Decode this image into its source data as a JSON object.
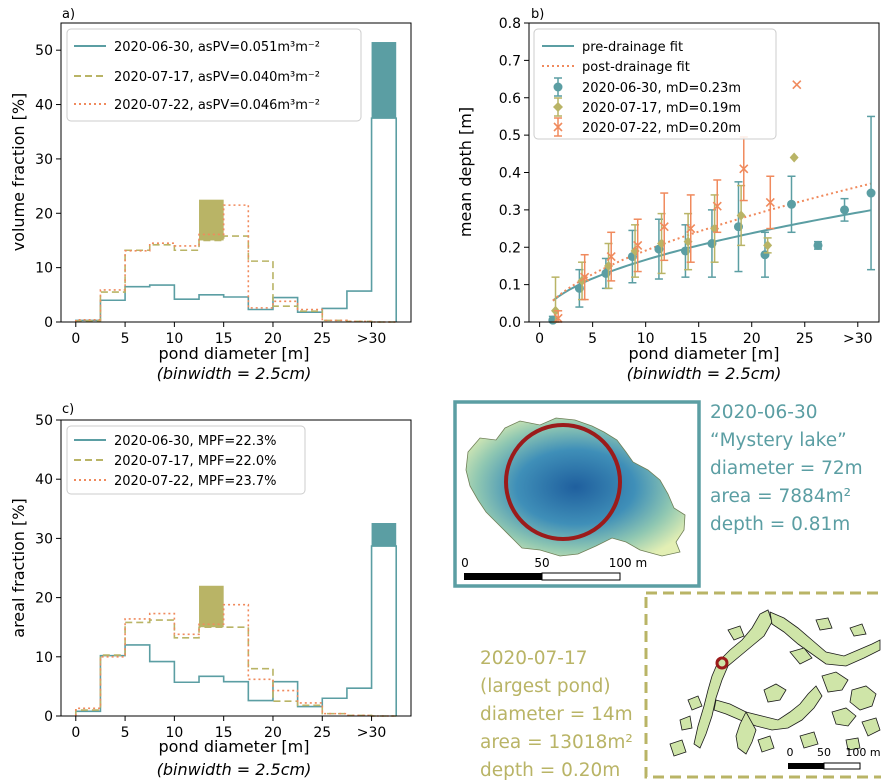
{
  "colors": {
    "teal": "#5b9ea3",
    "olive": "#b9b466",
    "salmon": "#f08a5d",
    "dark_red": "#9b1b1b",
    "pond_fill": "#cfe5a8"
  },
  "chart_data": [
    {
      "id": "a",
      "panel_label": "a)",
      "type": "histogram",
      "ylabel": "volume fraction [%]",
      "xlabel": "pond diameter [m]",
      "xlabel_sub": "(binwidth = 2.5cm)",
      "ylim": [
        0,
        55
      ],
      "yticks": [
        0,
        10,
        20,
        30,
        40,
        50
      ],
      "xtick_labels": [
        "0",
        "5",
        "10",
        "15",
        "20",
        "25",
        ">30"
      ],
      "xticks": [
        0,
        5,
        10,
        15,
        20,
        25,
        30
      ],
      "bin_edges": [
        0,
        2.5,
        5,
        7.5,
        10,
        12.5,
        15,
        17.5,
        20,
        22.5,
        25,
        27.5,
        30,
        32.5
      ],
      "legend": [
        {
          "label": "2020-06-30, asPV=0.051m³m⁻²",
          "style": "solid"
        },
        {
          "label": "2020-07-17, asPV=0.040m³m⁻²",
          "style": "dashed"
        },
        {
          "label": "2020-07-22, asPV=0.046m³m⁻²",
          "style": "dotted"
        }
      ],
      "series": [
        {
          "name": "2020-06-30",
          "values": [
            0.3,
            4.0,
            6.5,
            6.8,
            4.2,
            5.0,
            4.6,
            2.3,
            4.5,
            1.8,
            2.5,
            5.7,
            37.5
          ]
        },
        {
          "name": "2020-07-17",
          "values": [
            0.2,
            5.5,
            13.2,
            14.2,
            13.2,
            15.0,
            15.8,
            11.2,
            2.9,
            2.0,
            0.3,
            0.1,
            0.0
          ]
        },
        {
          "name": "2020-07-22",
          "values": [
            0.4,
            5.9,
            13.1,
            14.5,
            14.0,
            16.1,
            21.5,
            2.6,
            3.8,
            2.3,
            0.3,
            0.1,
            0.0
          ]
        }
      ],
      "highlights": [
        {
          "x0": 12.5,
          "x1": 15,
          "y0": 15.0,
          "y1": 22.5,
          "color": "olive"
        },
        {
          "x0": 30,
          "x1": 32.5,
          "y0": 37.5,
          "y1": 51.5,
          "color": "teal"
        }
      ]
    },
    {
      "id": "b",
      "panel_label": "b)",
      "type": "scatter",
      "ylabel": "mean depth [m]",
      "xlabel": "pond diameter [m]",
      "xlabel_sub": "(binwidth = 2.5cm)",
      "xlim": [
        -1,
        32
      ],
      "ylim": [
        0,
        0.8
      ],
      "yticks": [
        0.0,
        0.1,
        0.2,
        0.3,
        0.4,
        0.5,
        0.6,
        0.7,
        0.8
      ],
      "xtick_labels": [
        "0",
        "5",
        "10",
        "15",
        "20",
        "25",
        ">30"
      ],
      "xticks": [
        0,
        5,
        10,
        15,
        20,
        25,
        30
      ],
      "legend": [
        {
          "label": "pre-drainage fit",
          "style": "line-solid"
        },
        {
          "label": "post-drainage fit",
          "style": "line-dotted"
        },
        {
          "label": "2020-06-30, mD=0.23m",
          "style": "marker-circle"
        },
        {
          "label": "2020-07-17, mD=0.19m",
          "style": "marker-diamond"
        },
        {
          "label": "2020-07-22, mD=0.20m",
          "style": "marker-x"
        }
      ],
      "fits": [
        {
          "name": "pre-drainage fit",
          "a": 0.0508,
          "b": 0.515,
          "x_start": 1.25,
          "x_end": 31.25
        },
        {
          "name": "post-drainage fit",
          "a": 0.0503,
          "b": 0.58,
          "x_start": 1.25,
          "x_end": 31.25
        }
      ],
      "series": [
        {
          "name": "2020-06-30",
          "marker": "circle",
          "points": [
            {
              "x": 1.25,
              "y": 0.005,
              "err": 0.01
            },
            {
              "x": 3.75,
              "y": 0.09,
              "err": 0.05
            },
            {
              "x": 6.25,
              "y": 0.13,
              "err": 0.04
            },
            {
              "x": 8.75,
              "y": 0.175,
              "err": 0.07
            },
            {
              "x": 11.25,
              "y": 0.195,
              "err": 0.08
            },
            {
              "x": 13.75,
              "y": 0.19,
              "err": 0.07
            },
            {
              "x": 16.25,
              "y": 0.21,
              "err": 0.09
            },
            {
              "x": 18.75,
              "y": 0.255,
              "err": 0.12
            },
            {
              "x": 21.25,
              "y": 0.18,
              "err": 0.06
            },
            {
              "x": 23.75,
              "y": 0.315,
              "err": 0.075
            },
            {
              "x": 26.25,
              "y": 0.205,
              "err": 0.01
            },
            {
              "x": 28.75,
              "y": 0.3,
              "err": 0.03
            },
            {
              "x": 31.25,
              "y": 0.345,
              "err": 0.205
            }
          ]
        },
        {
          "name": "2020-07-17",
          "marker": "diamond",
          "points": [
            {
              "x": 1.5,
              "y": 0.03,
              "err": 0.09
            },
            {
              "x": 4.0,
              "y": 0.11,
              "err": 0.05
            },
            {
              "x": 6.5,
              "y": 0.15,
              "err": 0.06
            },
            {
              "x": 9.0,
              "y": 0.19,
              "err": 0.07
            },
            {
              "x": 11.5,
              "y": 0.21,
              "err": 0.08
            },
            {
              "x": 14.0,
              "y": 0.215,
              "err": 0.075
            },
            {
              "x": 16.5,
              "y": 0.25,
              "err": 0.09
            },
            {
              "x": 19.0,
              "y": 0.285,
              "err": 0.08
            },
            {
              "x": 21.5,
              "y": 0.205,
              "err": 0.02
            },
            {
              "x": 24.0,
              "y": 0.44,
              "err": 0.0
            }
          ]
        },
        {
          "name": "2020-07-22",
          "marker": "x",
          "points": [
            {
              "x": 1.75,
              "y": 0.01,
              "err": 0.02
            },
            {
              "x": 4.25,
              "y": 0.12,
              "err": 0.06
            },
            {
              "x": 6.75,
              "y": 0.175,
              "err": 0.065
            },
            {
              "x": 9.25,
              "y": 0.205,
              "err": 0.07
            },
            {
              "x": 11.75,
              "y": 0.255,
              "err": 0.09
            },
            {
              "x": 14.25,
              "y": 0.25,
              "err": 0.09
            },
            {
              "x": 16.75,
              "y": 0.31,
              "err": 0.07
            },
            {
              "x": 19.25,
              "y": 0.41,
              "err": 0.085
            },
            {
              "x": 21.75,
              "y": 0.32,
              "err": 0.07
            },
            {
              "x": 24.25,
              "y": 0.635,
              "err": 0.0
            }
          ]
        }
      ]
    },
    {
      "id": "c",
      "panel_label": "c)",
      "type": "histogram",
      "ylabel": "areal fraction [%]",
      "xlabel": "pond diameter [m]",
      "xlabel_sub": "(binwidth = 2.5cm)",
      "ylim": [
        0,
        50
      ],
      "yticks": [
        0,
        10,
        20,
        30,
        40,
        50
      ],
      "xtick_labels": [
        "0",
        "5",
        "10",
        "15",
        "20",
        "25",
        ">30"
      ],
      "xticks": [
        0,
        5,
        10,
        15,
        20,
        25,
        30
      ],
      "bin_edges": [
        0,
        2.5,
        5,
        7.5,
        10,
        12.5,
        15,
        17.5,
        20,
        22.5,
        25,
        27.5,
        30,
        32.5
      ],
      "legend": [
        {
          "label": "2020-06-30, MPF=22.3%",
          "style": "solid"
        },
        {
          "label": "2020-07-17, MPF=22.0%",
          "style": "dashed"
        },
        {
          "label": "2020-07-22, MPF=23.7%",
          "style": "dotted"
        }
      ],
      "series": [
        {
          "name": "2020-06-30",
          "values": [
            0.8,
            10.2,
            12.0,
            9.2,
            5.7,
            6.7,
            5.8,
            2.6,
            5.8,
            1.6,
            3.0,
            4.7,
            28.7
          ]
        },
        {
          "name": "2020-07-17",
          "values": [
            1.0,
            10.3,
            15.8,
            16.2,
            13.2,
            15.0,
            15.0,
            8.0,
            2.5,
            1.8,
            0.4,
            0.1,
            0.0
          ]
        },
        {
          "name": "2020-07-22",
          "values": [
            1.3,
            10.0,
            16.4,
            17.3,
            13.8,
            15.5,
            18.8,
            6.2,
            4.3,
            2.2,
            0.4,
            0.1,
            0.0
          ]
        }
      ],
      "highlights": [
        {
          "x0": 12.5,
          "x1": 15,
          "y0": 15.0,
          "y1": 22.0,
          "color": "olive"
        },
        {
          "x0": 30,
          "x1": 32.5,
          "y0": 28.7,
          "y1": 32.6,
          "color": "teal"
        }
      ]
    }
  ],
  "inset_lake": {
    "scale_labels": [
      "0",
      "50",
      "100 m"
    ],
    "annotation": [
      "2020-06-30",
      "“Mystery lake”",
      "diameter = 72m",
      "area = 7884m²",
      "depth = 0.81m"
    ]
  },
  "inset_pond": {
    "scale_labels": [
      "0",
      "50",
      "100 m"
    ],
    "annotation": [
      "2020-07-17",
      "(largest pond)",
      "diameter = 14m",
      "area = 13018m²",
      "depth = 0.20m"
    ]
  }
}
